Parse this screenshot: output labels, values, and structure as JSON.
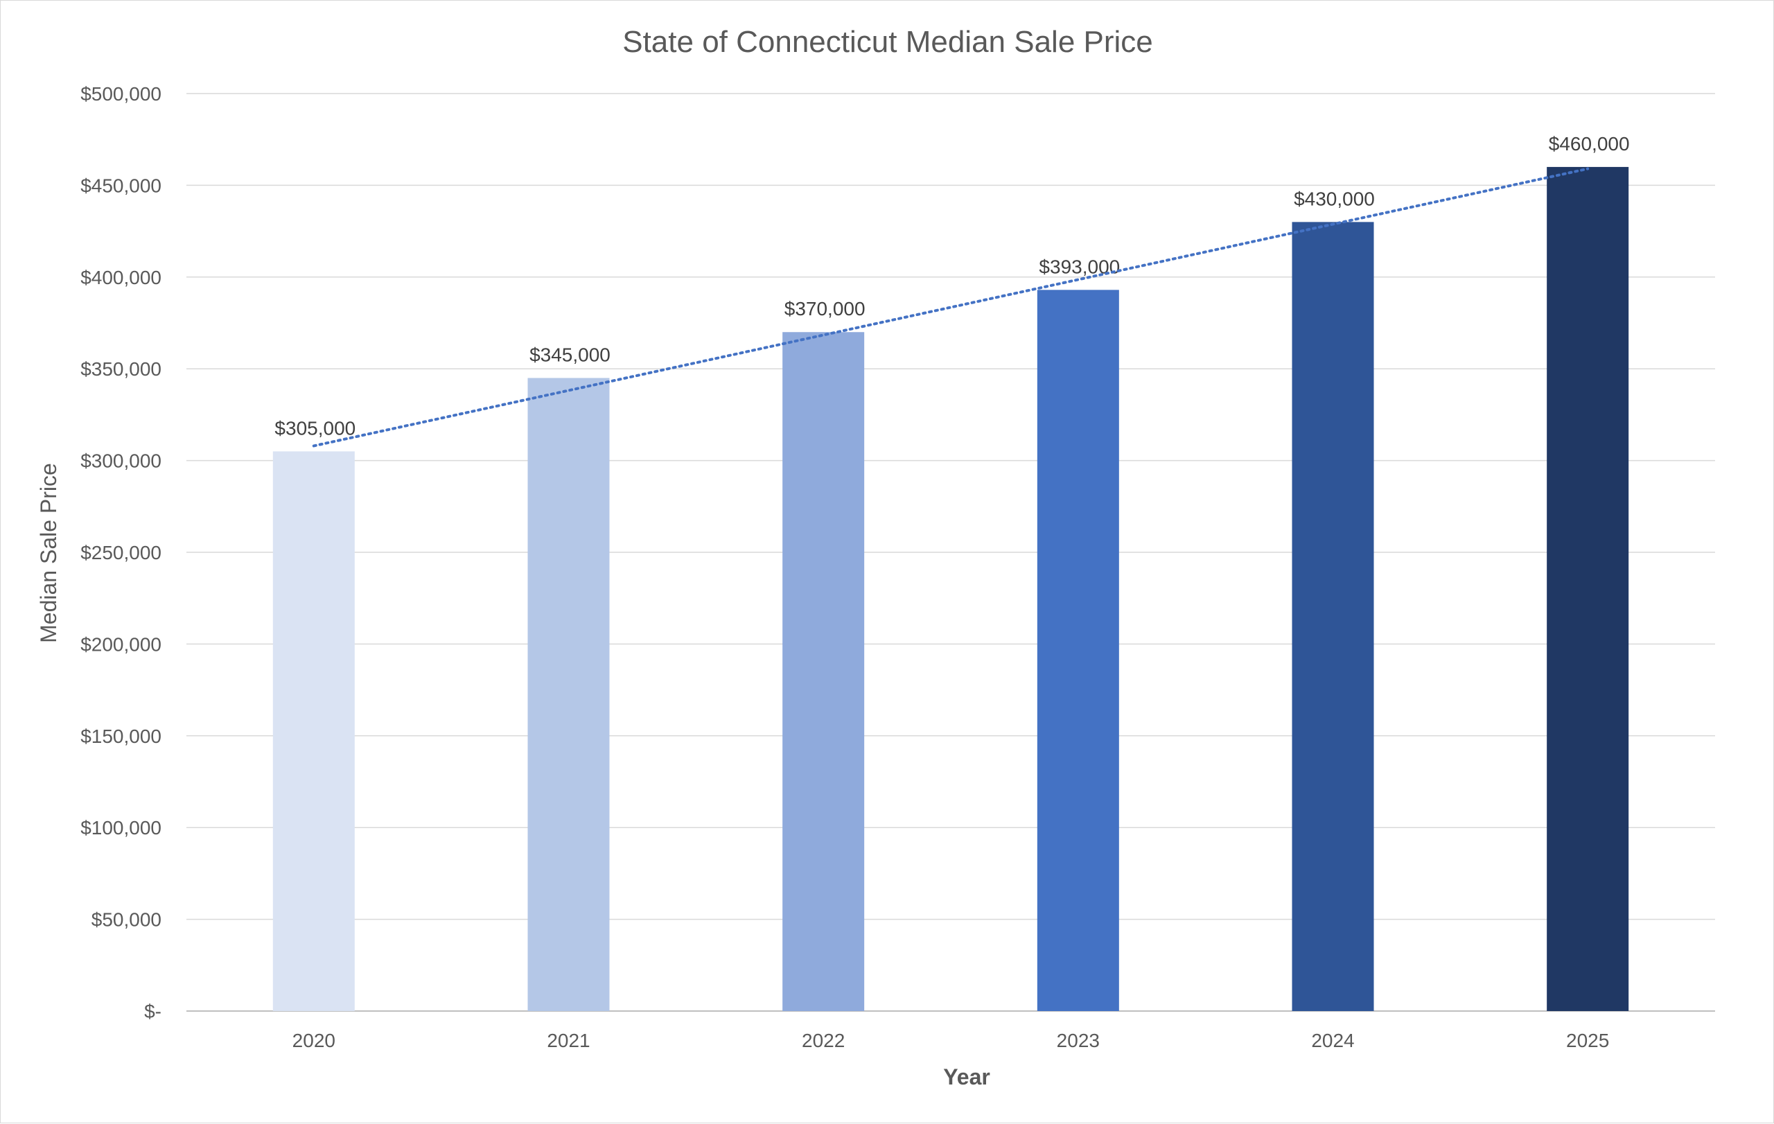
{
  "chart_data": {
    "type": "bar",
    "title": "State of Connecticut Median Sale Price",
    "xlabel": "Year",
    "ylabel": "Median Sale Price",
    "categories": [
      "2020",
      "2021",
      "2022",
      "2023",
      "2024",
      "2025"
    ],
    "values": [
      305000,
      345000,
      370000,
      393000,
      430000,
      460000
    ],
    "data_labels": [
      "$305,000",
      "$345,000",
      "$370,000",
      "$393,000",
      "$430,000",
      "$460,000"
    ],
    "bar_colors": [
      "#dae3f3",
      "#b4c7e7",
      "#8faadc",
      "#4472c4",
      "#2f5597",
      "#203864"
    ],
    "ylim": [
      0,
      500000
    ],
    "yticks": [
      0,
      50000,
      100000,
      150000,
      200000,
      250000,
      300000,
      350000,
      400000,
      450000,
      500000
    ],
    "ytick_labels": [
      "$-",
      "$50,000",
      "$100,000",
      "$150,000",
      "$200,000",
      "$250,000",
      "$300,000",
      "$350,000",
      "$400,000",
      "$450,000",
      "$500,000"
    ],
    "grid": true,
    "legend": "none",
    "trendline": {
      "type": "linear",
      "style": "dotted",
      "color": "#4472c4",
      "start": 308000,
      "end": 459000
    }
  }
}
